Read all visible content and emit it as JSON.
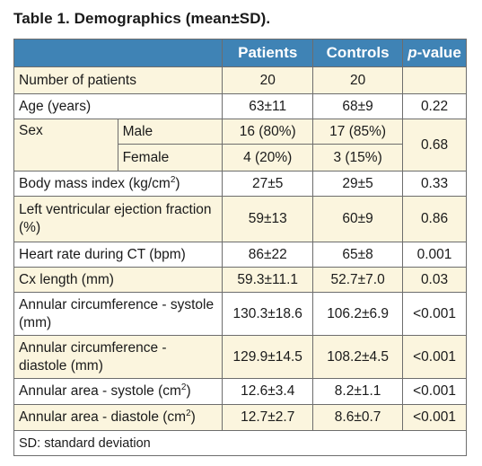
{
  "title": "Table 1. Demographics (mean±SD).",
  "headers": {
    "patients": "Patients",
    "controls": "Controls",
    "pvalue_p": "p",
    "pvalue_rest": "-value"
  },
  "rows": {
    "n": {
      "label": "Number of patients",
      "patients": "20",
      "controls": "20",
      "p": ""
    },
    "age": {
      "label": "Age (years)",
      "patients": "63±11",
      "controls": "68±9",
      "p": "0.22"
    },
    "sex": {
      "label": "Sex",
      "p": "0.68",
      "male": {
        "label": "Male",
        "patients": "16 (80%)",
        "controls": "17 (85%)"
      },
      "female": {
        "label": "Female",
        "patients": "4 (20%)",
        "controls": "3 (15%)"
      }
    },
    "bmi": {
      "label": "Body mass index (kg/cm",
      "sup": "2",
      "label_end": ")",
      "patients": "27±5",
      "controls": "29±5",
      "p": "0.33"
    },
    "lvef": {
      "label": "Left ventricular ejection fraction (%)",
      "patients": "59±13",
      "controls": "60±9",
      "p": "0.86"
    },
    "hr": {
      "label": "Heart rate during CT (bpm)",
      "patients": "86±22",
      "controls": "65±8",
      "p": "0.001"
    },
    "cx": {
      "label": "Cx length (mm)",
      "patients": "59.3±11.1",
      "controls": "52.7±7.0",
      "p": "0.03"
    },
    "circ_sys": {
      "label": "Annular circumference - systole (mm)",
      "patients": "130.3±18.6",
      "controls": "106.2±6.9",
      "p": "<0.001"
    },
    "circ_dia": {
      "label": "Annular circumference - diastole (mm)",
      "patients": "129.9±14.5",
      "controls": "108.2±4.5",
      "p": "<0.001"
    },
    "area_sys": {
      "label": "Annular area - systole (cm",
      "sup": "2",
      "label_end": ")",
      "patients": "12.6±3.4",
      "controls": "8.2±1.1",
      "p": "<0.001"
    },
    "area_dia": {
      "label": "Annular area - diastole (cm",
      "sup": "2",
      "label_end": ")",
      "patients": "12.7±2.7",
      "controls": "8.6±0.7",
      "p": "<0.001"
    }
  },
  "footnote": "SD: standard deviation",
  "colors": {
    "header_bg": "#3f83b5",
    "alt_row_bg": "#fbf5de",
    "border": "#6d6d6d"
  }
}
